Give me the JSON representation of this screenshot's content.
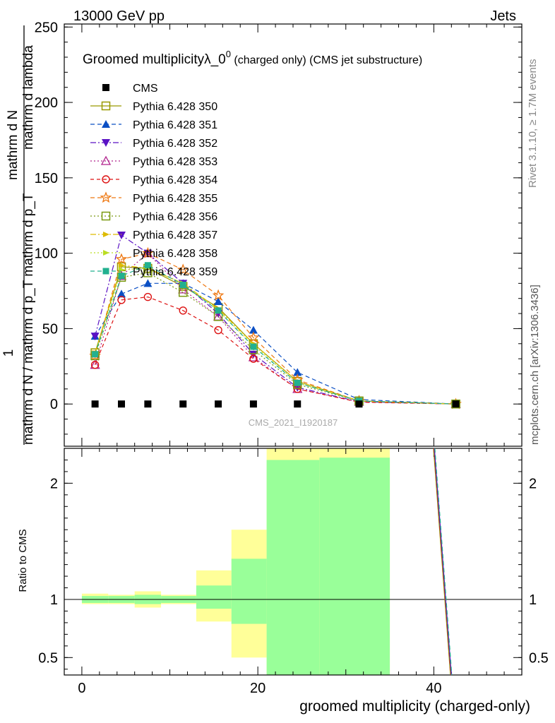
{
  "header": {
    "left": "13000 GeV pp",
    "right": "Jets"
  },
  "title": {
    "main": "Groomed multiplicityλ_0",
    "sup": "0",
    "rest": " (charged only) (CMS jet substructure)"
  },
  "side_labels": {
    "rivet": "Rivet 3.1.10, ≥ 1.7M events",
    "mcplots": "mcplots.cern.ch [arXiv:1306.3436]"
  },
  "watermark": "CMS_2021_I1920187",
  "ylabel_main": {
    "one": "1",
    "denom": "mathrm d N / mathrm d p_T mathrm d p_T",
    "frac": "mathrm d",
    "num": "mathrm d N",
    "den2": "mathrm d lambda"
  },
  "ylabel_ratio": "Ratio to CMS",
  "xlabel": "groomed multiplicity (charged-only)",
  "colors": {
    "band_yellow": "#ffff99",
    "band_green": "#99ff99",
    "axis": "#000000"
  },
  "chart_data": {
    "type": "line",
    "x_range": [
      -2,
      50
    ],
    "main_ylim": [
      -28,
      252
    ],
    "main_yticks": [
      0,
      50,
      100,
      150,
      200,
      250
    ],
    "ratio_ylim": [
      0.35,
      2.3
    ],
    "ratio_yticks": [
      0.5,
      1,
      2
    ],
    "x_ticks": [
      0,
      20,
      40
    ],
    "bins": [
      [
        0,
        3
      ],
      [
        3,
        6
      ],
      [
        6,
        9
      ],
      [
        9,
        13
      ],
      [
        13,
        17
      ],
      [
        17,
        21
      ],
      [
        21,
        27
      ],
      [
        27,
        35
      ],
      [
        35,
        50
      ]
    ],
    "x": [
      1.5,
      4.5,
      7.5,
      11.5,
      15.5,
      19.5,
      24.5,
      31.5,
      42.5
    ],
    "data": {
      "name": "CMS",
      "y": [
        0,
        0,
        0,
        0,
        0,
        0,
        0,
        0,
        0
      ],
      "ratio_band_yellow": [
        [
          0.96,
          1.05
        ],
        [
          0.96,
          1.04
        ],
        [
          0.93,
          1.07
        ],
        [
          0.96,
          1.04
        ],
        [
          0.81,
          1.25
        ],
        [
          0.5,
          1.6
        ],
        [
          0.3,
          2.35
        ],
        [
          0.3,
          2.3
        ]
      ],
      "ratio_band_green": [
        [
          0.97,
          1.03
        ],
        [
          0.97,
          1.03
        ],
        [
          0.96,
          1.04
        ],
        [
          0.97,
          1.03
        ],
        [
          0.92,
          1.12
        ],
        [
          0.79,
          1.35
        ],
        [
          0.3,
          2.2
        ],
        [
          0.3,
          2.22
        ]
      ]
    },
    "series": [
      {
        "name": "Pythia 6.428 350",
        "color": "#999900",
        "marker": "square-open",
        "dash": "",
        "y": [
          34,
          91,
          90,
          78,
          64,
          40,
          15,
          2,
          0
        ]
      },
      {
        "name": "Pythia 6.428 351",
        "color": "#0b4fc4",
        "marker": "triangle-up-filled",
        "dash": "6,4",
        "y": [
          45,
          73,
          80,
          80,
          68,
          49,
          21,
          3,
          0
        ]
      },
      {
        "name": "Pythia 6.428 352",
        "color": "#5a12c4",
        "marker": "triangle-down-filled",
        "dash": "8,3,2,3",
        "y": [
          45,
          112,
          100,
          80,
          60,
          33,
          11,
          1.5,
          0
        ]
      },
      {
        "name": "Pythia 6.428 353",
        "color": "#b0208c",
        "marker": "triangle-up-open",
        "dash": "2,3",
        "y": [
          26,
          85,
          100,
          76,
          58,
          31,
          10,
          1.5,
          0
        ]
      },
      {
        "name": "Pythia 6.428 354",
        "color": "#dd1111",
        "marker": "circle-open",
        "dash": "5,4",
        "y": [
          26,
          69,
          71,
          62,
          49,
          30,
          10,
          1.2,
          0
        ]
      },
      {
        "name": "Pythia 6.428 355",
        "color": "#ee7711",
        "marker": "star-open",
        "dash": "6,4",
        "y": [
          32,
          96,
          100,
          89,
          72,
          44,
          16,
          2,
          0
        ]
      },
      {
        "name": "Pythia 6.428 356",
        "color": "#7a9910",
        "marker": "square-open",
        "dash": "2,3",
        "y": [
          32,
          84,
          87,
          74,
          58,
          36,
          13,
          2,
          0
        ]
      },
      {
        "name": "Pythia 6.428 357",
        "color": "#ddbb00",
        "marker": "tri-right",
        "dash": "8,3,2,3",
        "y": [
          34,
          92,
          90,
          80,
          63,
          40,
          15,
          2,
          0
        ]
      },
      {
        "name": "Pythia 6.428 358",
        "color": "#bbdd22",
        "marker": "tri-right",
        "dash": "2,3",
        "y": [
          33,
          89,
          90,
          80,
          62,
          39,
          14,
          2,
          0
        ]
      },
      {
        "name": "Pythia 6.428 359",
        "color": "#22b08f",
        "marker": "square-filled",
        "dash": "6,4",
        "y": [
          33,
          85,
          92,
          79,
          62,
          38,
          14,
          2,
          0
        ]
      }
    ]
  }
}
